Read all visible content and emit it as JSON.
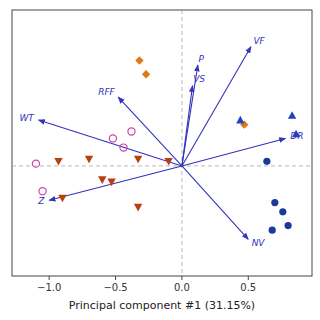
{
  "chart_data": {
    "type": "scatter",
    "xlabel": "Principal component #1 (31.15%)",
    "xlim": [
      -1.28,
      0.98
    ],
    "ylim": [
      -0.48,
      0.68
    ],
    "xticks": [
      {
        "value": -1.0,
        "label": "−1.0"
      },
      {
        "value": -0.5,
        "label": "−0.5"
      },
      {
        "value": 0.0,
        "label": "0.0"
      },
      {
        "value": 0.5,
        "label": "0.5"
      }
    ],
    "yticks": [],
    "tick_labels": "x",
    "grid": false,
    "series": [
      {
        "type": "arrow",
        "color": "#3333bb",
        "labels": [
          "WT",
          "RFF",
          "VS",
          "P",
          "VF",
          "DR",
          "NV",
          "Z"
        ],
        "x": [
          -1.08,
          -0.48,
          0.08,
          0.12,
          0.52,
          0.78,
          0.5,
          -1.0
        ],
        "values": [
          0.2,
          0.3,
          0.35,
          0.44,
          0.52,
          0.12,
          -0.32,
          -0.15
        ]
      },
      {
        "type": "scatter",
        "marker": "diamond",
        "color": "#e07818",
        "x": [
          -0.32,
          -0.27,
          0.47
        ],
        "values": [
          0.46,
          0.4,
          0.18
        ]
      },
      {
        "type": "scatter",
        "marker": "triangle-down",
        "color": "#b84010",
        "x": [
          -0.93,
          -0.7,
          -0.6,
          -0.53,
          -0.33,
          -0.33,
          -0.1,
          -0.9
        ],
        "values": [
          0.02,
          0.03,
          -0.06,
          -0.07,
          -0.18,
          0.03,
          0.02,
          -0.14
        ]
      },
      {
        "type": "scatter",
        "marker": "circle",
        "color": "#1a3a99",
        "x": [
          0.64,
          0.7,
          0.76,
          0.8,
          0.68
        ],
        "values": [
          0.02,
          -0.16,
          -0.2,
          -0.26,
          -0.28
        ]
      },
      {
        "type": "scatter",
        "marker": "triangle-up",
        "color": "#2244bb",
        "x": [
          0.44,
          0.83,
          0.86
        ],
        "values": [
          0.2,
          0.22,
          0.14
        ]
      },
      {
        "type": "scatter",
        "marker": "circle-open",
        "color": "#cc44aa",
        "x": [
          -1.1,
          -1.05,
          -0.52,
          -0.44,
          -0.38
        ],
        "values": [
          0.01,
          -0.11,
          0.12,
          0.08,
          0.15
        ]
      }
    ]
  }
}
